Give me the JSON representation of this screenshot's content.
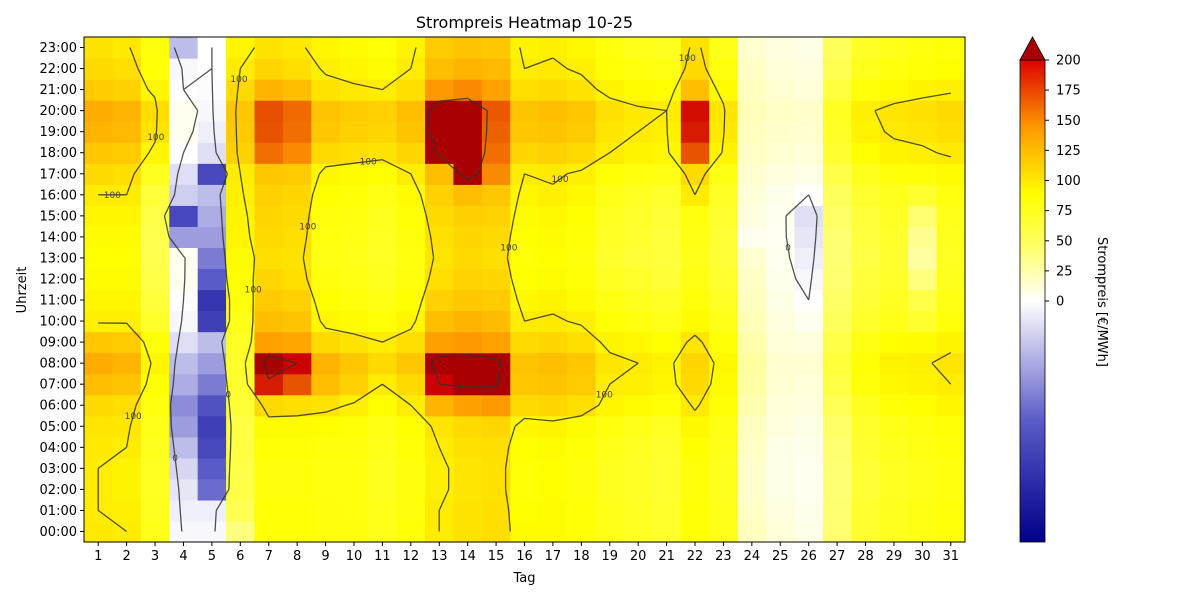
{
  "chart_data": {
    "type": "heatmap",
    "title": "Strompreis Heatmap 10-25",
    "xlabel": "Tag",
    "ylabel": "Uhrzeit",
    "colorbar_label": "Strompreis [€/MWh]",
    "x_categories": [
      "1",
      "2",
      "3",
      "4",
      "5",
      "6",
      "7",
      "8",
      "9",
      "10",
      "11",
      "12",
      "13",
      "14",
      "15",
      "16",
      "17",
      "18",
      "19",
      "20",
      "21",
      "22",
      "23",
      "24",
      "25",
      "26",
      "27",
      "28",
      "29",
      "30",
      "31"
    ],
    "y_categories": [
      "00:00",
      "01:00",
      "02:00",
      "03:00",
      "04:00",
      "05:00",
      "06:00",
      "07:00",
      "08:00",
      "09:00",
      "10:00",
      "11:00",
      "12:00",
      "13:00",
      "14:00",
      "15:00",
      "16:00",
      "17:00",
      "18:00",
      "19:00",
      "20:00",
      "21:00",
      "22:00",
      "23:00"
    ],
    "color_range": [
      -200,
      200
    ],
    "colorbar_ticks": [
      0,
      25,
      50,
      75,
      100,
      125,
      150,
      175,
      200
    ],
    "colorbar_extend": "max",
    "contour_levels": [
      0,
      100,
      200
    ],
    "contour_label_values": [
      "0",
      "100",
      "200"
    ],
    "colors": {
      "low": "#00008b",
      "zero": "#ffffff",
      "mid": "#ffff00",
      "orange": "#ff9900",
      "high": "#cc0000",
      "over": "#a80000"
    },
    "day_base": [
      92,
      92,
      62,
      -20,
      -45,
      65,
      105,
      100,
      90,
      88,
      82,
      92,
      108,
      122,
      118,
      92,
      95,
      88,
      80,
      75,
      72,
      108,
      78,
      18,
      10,
      5,
      55,
      72,
      80,
      82,
      88
    ],
    "daily_profiles": [
      [
        102,
        100,
        100,
        100,
        102,
        104,
        110,
        125,
        135,
        120,
        98,
        95,
        92,
        90,
        92,
        95,
        100,
        110,
        120,
        130,
        135,
        118,
        110,
        105
      ],
      [
        100,
        98,
        96,
        96,
        100,
        103,
        108,
        122,
        130,
        118,
        98,
        95,
        92,
        90,
        92,
        95,
        100,
        108,
        118,
        128,
        130,
        115,
        108,
        102
      ],
      [
        80,
        78,
        76,
        76,
        78,
        80,
        84,
        90,
        95,
        88,
        72,
        65,
        60,
        58,
        58,
        60,
        65,
        78,
        95,
        105,
        108,
        95,
        88,
        85
      ],
      [
        -5,
        -10,
        -15,
        -25,
        -40,
        -60,
        -70,
        -50,
        -40,
        -20,
        -5,
        0,
        5,
        5,
        -60,
        -120,
        -30,
        -20,
        0,
        5,
        5,
        0,
        -5,
        -40
      ],
      [
        -5,
        -10,
        -90,
        -100,
        -120,
        -130,
        -110,
        -80,
        -60,
        -40,
        -130,
        -140,
        -100,
        -80,
        -60,
        -50,
        -40,
        -120,
        -20,
        -10,
        -5,
        -2,
        0,
        0
      ],
      [
        40,
        55,
        60,
        60,
        62,
        62,
        68,
        70,
        72,
        75,
        80,
        85,
        90,
        92,
        95,
        96,
        98,
        100,
        115,
        118,
        120,
        110,
        100,
        95
      ],
      [
        88,
        88,
        86,
        86,
        88,
        92,
        110,
        190,
        230,
        140,
        125,
        118,
        112,
        108,
        110,
        112,
        115,
        120,
        160,
        170,
        172,
        130,
        112,
        105
      ],
      [
        88,
        88,
        86,
        86,
        88,
        92,
        108,
        170,
        200,
        138,
        122,
        115,
        108,
        105,
        108,
        110,
        112,
        118,
        150,
        160,
        162,
        125,
        108,
        102
      ],
      [
        85,
        85,
        84,
        84,
        86,
        90,
        105,
        125,
        130,
        110,
        95,
        90,
        85,
        82,
        84,
        86,
        90,
        95,
        110,
        120,
        122,
        105,
        98,
        95
      ],
      [
        85,
        84,
        84,
        84,
        86,
        88,
        98,
        115,
        120,
        105,
        92,
        86,
        82,
        80,
        82,
        84,
        88,
        92,
        108,
        115,
        118,
        102,
        95,
        92
      ],
      [
        80,
        80,
        78,
        78,
        80,
        82,
        90,
        100,
        110,
        100,
        88,
        82,
        78,
        75,
        76,
        78,
        82,
        90,
        105,
        112,
        115,
        100,
        92,
        88
      ],
      [
        88,
        86,
        86,
        86,
        88,
        90,
        100,
        110,
        120,
        108,
        95,
        90,
        86,
        84,
        86,
        88,
        92,
        100,
        112,
        122,
        125,
        108,
        100,
        96
      ],
      [
        100,
        100,
        98,
        98,
        100,
        104,
        130,
        200,
        230,
        140,
        125,
        115,
        108,
        104,
        106,
        110,
        115,
        125,
        210,
        240,
        245,
        145,
        125,
        118
      ],
      [
        105,
        105,
        104,
        104,
        106,
        110,
        140,
        210,
        235,
        145,
        130,
        120,
        114,
        110,
        112,
        116,
        125,
        230,
        260,
        270,
        270,
        150,
        130,
        122
      ],
      [
        108,
        108,
        106,
        106,
        108,
        112,
        145,
        205,
        215,
        140,
        126,
        118,
        112,
        108,
        110,
        114,
        120,
        150,
        160,
        165,
        168,
        140,
        128,
        120
      ],
      [
        92,
        90,
        88,
        88,
        90,
        94,
        110,
        120,
        122,
        110,
        100,
        94,
        90,
        88,
        90,
        92,
        95,
        100,
        112,
        120,
        122,
        108,
        100,
        96
      ],
      [
        92,
        92,
        90,
        90,
        92,
        96,
        112,
        122,
        125,
        112,
        102,
        96,
        92,
        90,
        92,
        94,
        98,
        102,
        115,
        122,
        125,
        110,
        102,
        98
      ],
      [
        88,
        88,
        86,
        86,
        88,
        92,
        108,
        118,
        120,
        108,
        98,
        92,
        88,
        86,
        88,
        90,
        94,
        98,
        110,
        118,
        120,
        105,
        98,
        94
      ],
      [
        80,
        80,
        78,
        78,
        80,
        84,
        95,
        100,
        104,
        96,
        88,
        82,
        76,
        72,
        74,
        76,
        80,
        88,
        100,
        104,
        106,
        96,
        88,
        84
      ],
      [
        76,
        76,
        74,
        74,
        76,
        80,
        92,
        98,
        100,
        94,
        84,
        78,
        72,
        68,
        70,
        72,
        76,
        84,
        96,
        100,
        102,
        92,
        84,
        80
      ],
      [
        72,
        72,
        70,
        70,
        72,
        76,
        88,
        95,
        96,
        90,
        80,
        74,
        68,
        65,
        66,
        68,
        72,
        82,
        94,
        98,
        100,
        90,
        82,
        78
      ],
      [
        88,
        88,
        86,
        86,
        90,
        94,
        102,
        110,
        112,
        104,
        92,
        86,
        82,
        80,
        82,
        84,
        100,
        110,
        170,
        190,
        195,
        125,
        110,
        105
      ],
      [
        80,
        80,
        78,
        78,
        80,
        82,
        88,
        92,
        94,
        88,
        80,
        74,
        70,
        68,
        68,
        70,
        74,
        82,
        96,
        102,
        104,
        92,
        84,
        80
      ],
      [
        20,
        18,
        16,
        16,
        18,
        20,
        25,
        28,
        30,
        26,
        22,
        20,
        18,
        15,
        5,
        10,
        12,
        15,
        18,
        20,
        22,
        20,
        18,
        15
      ],
      [
        12,
        10,
        8,
        8,
        8,
        10,
        12,
        14,
        15,
        12,
        10,
        8,
        6,
        5,
        4,
        5,
        6,
        10,
        14,
        16,
        18,
        14,
        12,
        10
      ],
      [
        8,
        6,
        5,
        5,
        6,
        8,
        10,
        12,
        14,
        10,
        5,
        0,
        -5,
        -10,
        -15,
        -20,
        0,
        8,
        12,
        14,
        16,
        12,
        10,
        8
      ],
      [
        45,
        45,
        44,
        44,
        45,
        48,
        55,
        62,
        66,
        60,
        52,
        48,
        45,
        44,
        45,
        48,
        52,
        60,
        70,
        74,
        76,
        64,
        56,
        52
      ],
      [
        70,
        70,
        68,
        68,
        70,
        72,
        78,
        85,
        88,
        82,
        72,
        68,
        65,
        62,
        64,
        66,
        70,
        78,
        90,
        96,
        98,
        86,
        78,
        74
      ],
      [
        78,
        78,
        76,
        76,
        78,
        80,
        88,
        94,
        96,
        90,
        80,
        76,
        72,
        70,
        72,
        74,
        78,
        86,
        96,
        102,
        104,
        92,
        84,
        80
      ],
      [
        82,
        82,
        80,
        80,
        82,
        84,
        90,
        96,
        98,
        92,
        70,
        60,
        40,
        30,
        35,
        45,
        70,
        88,
        98,
        104,
        106,
        96,
        88,
        84
      ],
      [
        86,
        86,
        84,
        84,
        86,
        88,
        95,
        100,
        104,
        96,
        86,
        82,
        78,
        76,
        78,
        80,
        84,
        92,
        102,
        108,
        110,
        98,
        90,
        86
      ]
    ]
  }
}
